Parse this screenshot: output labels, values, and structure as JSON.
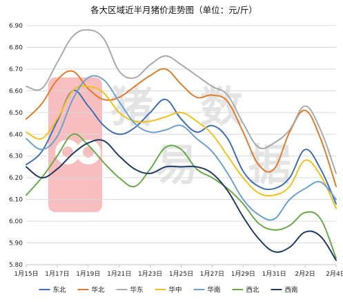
{
  "chart_data": {
    "type": "line",
    "title": "各大区域近半月猪价走势图（单位：元/斤）",
    "xlabel": "",
    "ylabel": "",
    "ylim": [
      5.8,
      6.9
    ],
    "yticks": [
      "6.90",
      "6.80",
      "6.70",
      "6.60",
      "6.50",
      "6.40",
      "6.30",
      "6.20",
      "6.10",
      "6.00",
      "5.90",
      "5.80"
    ],
    "x": [
      "1月15日",
      "1月16日",
      "1月17日",
      "1月18日",
      "1月19日",
      "1月20日",
      "1月21日",
      "1月22日",
      "1月23日",
      "1月24日",
      "1月25日",
      "1月26日",
      "1月27日",
      "1月28日",
      "1月29日",
      "1月30日",
      "1月31日",
      "2月1日",
      "2月2日",
      "2月3日",
      "2月4日"
    ],
    "xticks": [
      "1月15日",
      "1月17日",
      "1月19日",
      "1月21日",
      "1月23日",
      "1月25日",
      "1月27日",
      "1月29日",
      "1月31日",
      "2月2日",
      "2月4日"
    ],
    "grid": true,
    "legend_position": "bottom",
    "series": [
      {
        "name": "东北",
        "color": "#3f6db3",
        "values": [
          6.26,
          6.32,
          6.46,
          6.6,
          6.53,
          6.44,
          6.4,
          6.43,
          6.5,
          6.56,
          6.47,
          6.41,
          6.44,
          6.38,
          6.23,
          6.16,
          6.15,
          6.2,
          6.33,
          6.24,
          6.08
        ]
      },
      {
        "name": "华北",
        "color": "#e07b2a",
        "values": [
          6.47,
          6.54,
          6.65,
          6.69,
          6.61,
          6.56,
          6.57,
          6.62,
          6.67,
          6.7,
          6.63,
          6.57,
          6.58,
          6.55,
          6.41,
          6.26,
          6.24,
          6.41,
          6.51,
          6.38,
          6.16
        ]
      },
      {
        "name": "华东",
        "color": "#a9a9a9",
        "values": [
          6.62,
          6.61,
          6.73,
          6.85,
          6.88,
          6.84,
          6.69,
          6.66,
          6.72,
          6.76,
          6.72,
          6.67,
          6.62,
          6.58,
          6.45,
          6.34,
          6.36,
          6.42,
          6.53,
          6.42,
          6.22
        ]
      },
      {
        "name": "华中",
        "color": "#f0c11b",
        "values": [
          6.41,
          6.38,
          6.47,
          6.6,
          6.62,
          6.59,
          6.5,
          6.46,
          6.46,
          6.48,
          6.5,
          6.46,
          6.4,
          6.3,
          6.2,
          6.13,
          6.12,
          6.16,
          6.28,
          6.21,
          6.06
        ]
      },
      {
        "name": "华南",
        "color": "#6a9fd0",
        "values": [
          6.38,
          6.33,
          6.39,
          6.56,
          6.66,
          6.65,
          6.55,
          6.45,
          6.41,
          6.42,
          6.44,
          6.38,
          6.32,
          6.22,
          6.1,
          6.03,
          6.01,
          6.1,
          6.15,
          6.18,
          6.1
        ]
      },
      {
        "name": "西北",
        "color": "#6aaa46",
        "values": [
          6.12,
          6.2,
          6.3,
          6.4,
          6.35,
          6.27,
          6.2,
          6.16,
          6.24,
          6.34,
          6.33,
          6.24,
          6.2,
          6.15,
          6.08,
          5.99,
          5.96,
          5.98,
          6.04,
          6.01,
          5.83
        ]
      },
      {
        "name": "西南",
        "color": "#1f3864",
        "values": [
          6.25,
          6.2,
          6.24,
          6.31,
          6.36,
          6.37,
          6.3,
          6.24,
          6.22,
          6.25,
          6.25,
          6.25,
          6.22,
          6.14,
          6.02,
          5.92,
          5.86,
          5.88,
          5.95,
          5.93,
          5.82
        ]
      }
    ]
  },
  "watermark": {
    "text": "猪易数据"
  }
}
